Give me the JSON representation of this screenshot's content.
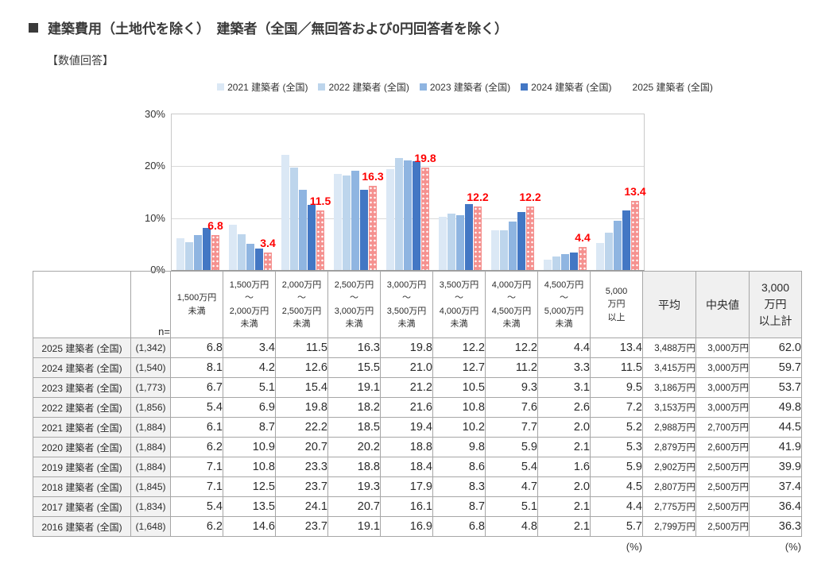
{
  "title": "建築費用（土地代を除く）　建築者（全国／無回答および0円回答者を除く）",
  "subtitle": "【数値回答】",
  "legend": [
    {
      "label": "2021 建築者 (全国)",
      "color": "#DBE8F5"
    },
    {
      "label": "2022 建築者 (全国)",
      "color": "#BDD5EC"
    },
    {
      "label": "2023 建築者 (全国)",
      "color": "#8FB5E1"
    },
    {
      "label": "2024 建築者 (全国)",
      "color": "#4377C4"
    },
    {
      "label": "2025 建築者 (全国)",
      "color": "#F5918F",
      "pattern": "white-dots"
    }
  ],
  "chart_data": {
    "type": "bar",
    "title": "建築費用（土地代を除く）　建築者（全国／無回答および0円回答者を除く）",
    "categories": [
      "1,500万円未満",
      "1,500万円～2,000万円未満",
      "2,000万円～2,500万円未満",
      "2,500万円～3,000万円未満",
      "3,000万円～3,500万円未満",
      "3,500万円～4,000万円未満",
      "4,000万円～4,500万円未満",
      "4,500万円～5,000万円未満",
      "5,000万円以上"
    ],
    "series": [
      {
        "name": "2021 建築者 (全国)",
        "color": "#DBE8F5",
        "values": [
          6.1,
          8.7,
          22.2,
          18.5,
          19.4,
          10.2,
          7.7,
          2.0,
          5.2
        ]
      },
      {
        "name": "2022 建築者 (全国)",
        "color": "#BDD5EC",
        "values": [
          5.4,
          6.9,
          19.8,
          18.2,
          21.6,
          10.8,
          7.6,
          2.6,
          7.2
        ]
      },
      {
        "name": "2023 建築者 (全国)",
        "color": "#8FB5E1",
        "values": [
          6.7,
          5.1,
          15.4,
          19.1,
          21.2,
          10.5,
          9.3,
          3.1,
          9.5
        ]
      },
      {
        "name": "2024 建築者 (全国)",
        "color": "#4377C4",
        "values": [
          8.1,
          4.2,
          12.6,
          15.5,
          21.0,
          12.7,
          11.2,
          3.3,
          11.5
        ]
      },
      {
        "name": "2025 建築者 (全国)",
        "color": "#F5918F",
        "pattern": "white-dots",
        "data_labels": true,
        "data_label_color": "#FE0000",
        "values": [
          6.8,
          3.4,
          11.5,
          16.3,
          19.8,
          12.2,
          12.2,
          4.4,
          13.4
        ]
      }
    ],
    "xlabel": "",
    "ylabel": "",
    "ylim": [
      0,
      30
    ],
    "yticks": [
      {
        "v": 0,
        "label": "0%"
      },
      {
        "v": 10,
        "label": "10%"
      },
      {
        "v": 20,
        "label": "20%"
      },
      {
        "v": 30,
        "label": "30%"
      }
    ],
    "grid": true,
    "legend_position": "top"
  },
  "table": {
    "n_label": "n=",
    "col_headers": [
      "1,500万円\n未満",
      "1,500万円\n～\n2,000万円\n未満",
      "2,000万円\n～\n2,500万円\n未満",
      "2,500万円\n～\n3,000万円\n未満",
      "3,000万円\n～\n3,500万円\n未満",
      "3,500万円\n～\n4,000万円\n未満",
      "4,000万円\n～\n4,500万円\n未満",
      "4,500万円\n～\n5,000万円\n未満",
      "5,000\n万円\n以上",
      "平均",
      "中央値",
      "3,000\n万円\n以上計"
    ],
    "rows": [
      {
        "label": "2025 建築者 (全国)",
        "n": "(1,342)",
        "values": [
          "6.8",
          "3.4",
          "11.5",
          "16.3",
          "19.8",
          "12.2",
          "12.2",
          "4.4",
          "13.4"
        ],
        "mean": "3,488万円",
        "median": "3,000万円",
        "over3000": "62.0"
      },
      {
        "label": "2024 建築者 (全国)",
        "n": "(1,540)",
        "values": [
          "8.1",
          "4.2",
          "12.6",
          "15.5",
          "21.0",
          "12.7",
          "11.2",
          "3.3",
          "11.5"
        ],
        "mean": "3,415万円",
        "median": "3,000万円",
        "over3000": "59.7"
      },
      {
        "label": "2023 建築者 (全国)",
        "n": "(1,773)",
        "values": [
          "6.7",
          "5.1",
          "15.4",
          "19.1",
          "21.2",
          "10.5",
          "9.3",
          "3.1",
          "9.5"
        ],
        "mean": "3,186万円",
        "median": "3,000万円",
        "over3000": "53.7"
      },
      {
        "label": "2022 建築者 (全国)",
        "n": "(1,856)",
        "values": [
          "5.4",
          "6.9",
          "19.8",
          "18.2",
          "21.6",
          "10.8",
          "7.6",
          "2.6",
          "7.2"
        ],
        "mean": "3,153万円",
        "median": "3,000万円",
        "over3000": "49.8"
      },
      {
        "label": "2021 建築者 (全国)",
        "n": "(1,884)",
        "values": [
          "6.1",
          "8.7",
          "22.2",
          "18.5",
          "19.4",
          "10.2",
          "7.7",
          "2.0",
          "5.2"
        ],
        "mean": "2,988万円",
        "median": "2,700万円",
        "over3000": "44.5"
      },
      {
        "label": "2020 建築者 (全国)",
        "n": "(1,884)",
        "values": [
          "6.2",
          "10.9",
          "20.7",
          "20.2",
          "18.8",
          "9.8",
          "5.9",
          "2.1",
          "5.3"
        ],
        "mean": "2,879万円",
        "median": "2,600万円",
        "over3000": "41.9"
      },
      {
        "label": "2019 建築者 (全国)",
        "n": "(1,884)",
        "values": [
          "7.1",
          "10.8",
          "23.3",
          "18.8",
          "18.4",
          "8.6",
          "5.4",
          "1.6",
          "5.9"
        ],
        "mean": "2,902万円",
        "median": "2,500万円",
        "over3000": "39.9"
      },
      {
        "label": "2018 建築者 (全国)",
        "n": "(1,845)",
        "values": [
          "7.1",
          "12.5",
          "23.7",
          "19.3",
          "17.9",
          "8.3",
          "4.7",
          "2.0",
          "4.5"
        ],
        "mean": "2,807万円",
        "median": "2,500万円",
        "over3000": "37.4"
      },
      {
        "label": "2017 建築者 (全国)",
        "n": "(1,834)",
        "values": [
          "5.4",
          "13.5",
          "24.1",
          "20.7",
          "16.1",
          "8.7",
          "5.1",
          "2.1",
          "4.4"
        ],
        "mean": "2,775万円",
        "median": "2,500万円",
        "over3000": "36.4"
      },
      {
        "label": "2016 建築者 (全国)",
        "n": "(1,648)",
        "values": [
          "6.2",
          "14.6",
          "23.7",
          "19.1",
          "16.9",
          "6.8",
          "4.8",
          "2.1",
          "5.7"
        ],
        "mean": "2,799万円",
        "median": "2,500万円",
        "over3000": "36.3"
      }
    ],
    "unit_label_1": "(%)",
    "unit_label_2": "(%)"
  }
}
